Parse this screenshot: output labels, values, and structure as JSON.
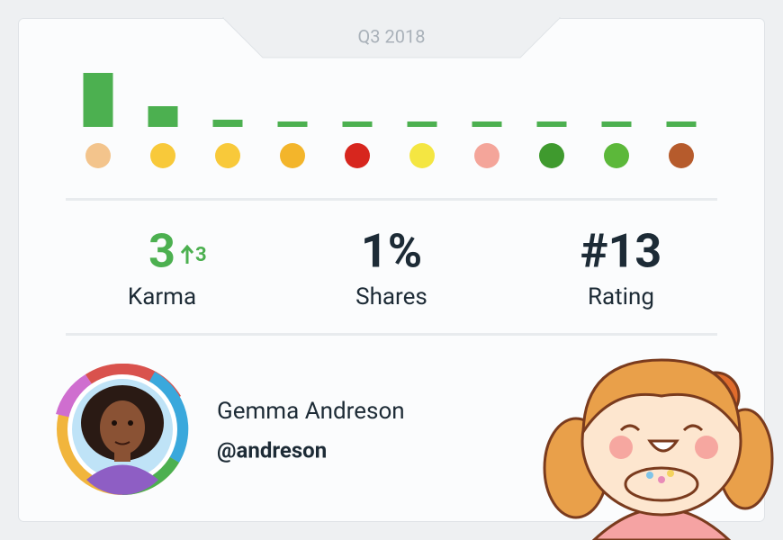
{
  "header": {
    "period": "Q3 2018"
  },
  "reactions": {
    "type": "bar",
    "color": "#4cb050",
    "values": [
      60,
      23,
      8,
      6,
      6,
      6,
      6,
      6,
      6,
      6
    ]
  },
  "stats": [
    {
      "value": "3",
      "change": "3",
      "label": "Karma"
    },
    {
      "value": "1%",
      "label": "Shares"
    },
    {
      "value": "#13",
      "label": "Rating"
    }
  ],
  "profile": {
    "name": "Gemma Andreson",
    "handle": "@andreson"
  }
}
